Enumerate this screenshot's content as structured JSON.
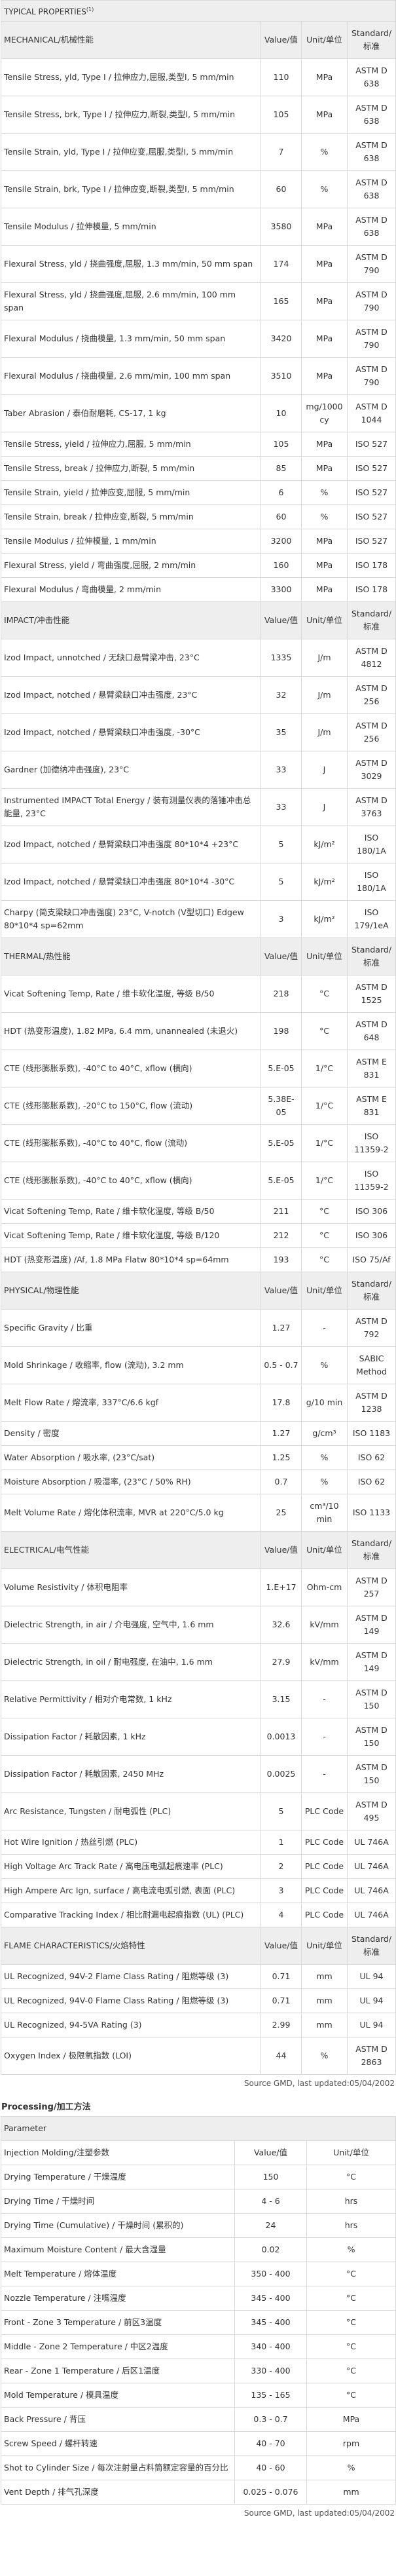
{
  "properties": {
    "title": "TYPICAL PROPERTIES",
    "title_note": "(1)",
    "sections": [
      {
        "header": [
          "MECHANICAL/机械性能",
          "Value/值",
          "Unit/单位",
          "Standard/标准"
        ],
        "rows": [
          [
            "Tensile Stress, yld, Type I / 拉伸应力,屈服,类型I, 5 mm/min",
            "110",
            "MPa",
            "ASTM D 638"
          ],
          [
            "Tensile Stress, brk, Type I / 拉伸应力,断裂,类型I, 5 mm/min",
            "105",
            "MPa",
            "ASTM D 638"
          ],
          [
            "Tensile Strain, yld, Type I / 拉伸应变,屈服,类型I, 5 mm/min",
            "7",
            "%",
            "ASTM D 638"
          ],
          [
            "Tensile Strain, brk, Type I / 拉伸应变,断裂,类型I, 5 mm/min",
            "60",
            "%",
            "ASTM D 638"
          ],
          [
            "Tensile Modulus / 拉伸模量, 5 mm/min",
            "3580",
            "MPa",
            "ASTM D 638"
          ],
          [
            "Flexural Stress, yld / 挠曲强度,屈服, 1.3 mm/min, 50 mm span",
            "174",
            "MPa",
            "ASTM D 790"
          ],
          [
            "Flexural Stress, yld / 挠曲强度,屈服, 2.6 mm/min, 100 mm span",
            "165",
            "MPa",
            "ASTM D 790"
          ],
          [
            "Flexural Modulus / 挠曲模量, 1.3 mm/min, 50 mm span",
            "3420",
            "MPa",
            "ASTM D 790"
          ],
          [
            "Flexural Modulus / 挠曲模量, 2.6 mm/min, 100 mm span",
            "3510",
            "MPa",
            "ASTM D 790"
          ],
          [
            "Taber Abrasion / 泰伯耐磨耗, CS-17, 1 kg",
            "10",
            "mg/1000cy",
            "ASTM D 1044"
          ],
          [
            "Tensile Stress, yield / 拉伸应力,屈服, 5 mm/min",
            "105",
            "MPa",
            "ISO 527"
          ],
          [
            "Tensile Stress, break / 拉伸应力,断裂, 5 mm/min",
            "85",
            "MPa",
            "ISO 527"
          ],
          [
            "Tensile Strain, yield / 拉伸应变,屈服, 5 mm/min",
            "6",
            "%",
            "ISO 527"
          ],
          [
            "Tensile Strain, break / 拉伸应变,断裂, 5 mm/min",
            "60",
            "%",
            "ISO 527"
          ],
          [
            "Tensile Modulus / 拉伸模量, 1 mm/min",
            "3200",
            "MPa",
            "ISO 527"
          ],
          [
            "Flexural Stress, yield / 弯曲强度,屈服, 2 mm/min",
            "160",
            "MPa",
            "ISO 178"
          ],
          [
            "Flexural Modulus / 弯曲模量, 2 mm/min",
            "3300",
            "MPa",
            "ISO 178"
          ]
        ]
      },
      {
        "header": [
          "IMPACT/冲击性能",
          "Value/值",
          "Unit/单位",
          "Standard/标准"
        ],
        "rows": [
          [
            "Izod Impact, unnotched / 无缺口悬臂梁冲击, 23°C",
            "1335",
            "J/m",
            "ASTM D 4812"
          ],
          [
            "Izod Impact, notched / 悬臂梁缺口冲击强度, 23°C",
            "32",
            "J/m",
            "ASTM D 256"
          ],
          [
            "Izod Impact, notched / 悬臂梁缺口冲击强度, -30°C",
            "35",
            "J/m",
            "ASTM D 256"
          ],
          [
            "Gardner (加德纳冲击强度), 23°C",
            "33",
            "J",
            "ASTM D 3029"
          ],
          [
            "Instrumented IMPACT Total Energy / 装有测量仪表的落锤冲击总能量, 23°C",
            "33",
            "J",
            "ASTM D 3763"
          ],
          [
            "Izod Impact, notched / 悬臂梁缺口冲击强度 80*10*4 +23°C",
            "5",
            "kJ/m²",
            "ISO 180/1A"
          ],
          [
            "Izod Impact, notched / 悬臂梁缺口冲击强度 80*10*4 -30°C",
            "5",
            "kJ/m²",
            "ISO 180/1A"
          ],
          [
            "Charpy (简支梁缺口冲击强度) 23°C, V-notch (V型切口) Edgew 80*10*4 sp=62mm",
            "3",
            "kJ/m²",
            "ISO 179/1eA"
          ]
        ]
      },
      {
        "header": [
          "THERMAL/热性能",
          "Value/值",
          "Unit/单位",
          "Standard/标准"
        ],
        "rows": [
          [
            "Vicat Softening Temp, Rate / 维卡软化温度, 等级 B/50",
            "218",
            "°C",
            "ASTM D 1525"
          ],
          [
            "HDT (热变形温度), 1.82 MPa, 6.4 mm, unannealed (未退火)",
            "198",
            "°C",
            "ASTM D 648"
          ],
          [
            "CTE (线形膨胀系数), -40°C to 40°C, xflow (横向)",
            "5.E-05",
            "1/°C",
            "ASTM E 831"
          ],
          [
            "CTE (线形膨胀系数), -20°C to 150°C, flow (流动)",
            "5.38E-05",
            "1/°C",
            "ASTM E 831"
          ],
          [
            "CTE (线形膨胀系数), -40°C to 40°C, flow (流动)",
            "5.E-05",
            "1/°C",
            "ISO 11359-2"
          ],
          [
            "CTE (线形膨胀系数), -40°C to 40°C, xflow (横向)",
            "5.E-05",
            "1/°C",
            "ISO 11359-2"
          ],
          [
            "Vicat Softening Temp, Rate / 维卡软化温度, 等级 B/50",
            "211",
            "°C",
            "ISO 306"
          ],
          [
            "Vicat Softening Temp, Rate / 维卡软化温度, 等级 B/120",
            "212",
            "°C",
            "ISO 306"
          ],
          [
            "HDT (热变形温度) /Af, 1.8 MPa Flatw 80*10*4 sp=64mm",
            "193",
            "°C",
            "ISO 75/Af"
          ]
        ]
      },
      {
        "header": [
          "PHYSICAL/物理性能",
          "Value/值",
          "Unit/单位",
          "Standard/标准"
        ],
        "rows": [
          [
            "Specific Gravity / 比重",
            "1.27",
            "-",
            "ASTM D 792"
          ],
          [
            "Mold Shrinkage / 收缩率, flow (流动), 3.2 mm",
            "0.5 - 0.7",
            "%",
            "SABIC Method"
          ],
          [
            "Melt Flow Rate / 熔流率, 337°C/6.6 kgf",
            "17.8",
            "g/10 min",
            "ASTM D 1238"
          ],
          [
            "Density / 密度",
            "1.27",
            "g/cm³",
            "ISO 1183"
          ],
          [
            "Water Absorption / 吸水率, (23°C/sat)",
            "1.25",
            "%",
            "ISO 62"
          ],
          [
            "Moisture Absorption / 吸湿率, (23°C / 50% RH)",
            "0.7",
            "%",
            "ISO 62"
          ],
          [
            "Melt Volume Rate / 熔化体积流率, MVR at 220°C/5.0 kg",
            "25",
            "cm³/10 min",
            "ISO 1133"
          ]
        ]
      },
      {
        "header": [
          "ELECTRICAL/电气性能",
          "Value/值",
          "Unit/单位",
          "Standard/标准"
        ],
        "rows": [
          [
            "Volume Resistivity / 体积电阻率",
            "1.E+17",
            "Ohm-cm",
            "ASTM D 257"
          ],
          [
            "Dielectric Strength, in air / 介电强度, 空气中, 1.6 mm",
            "32.6",
            "kV/mm",
            "ASTM D 149"
          ],
          [
            "Dielectric Strength, in oil / 耐电强度, 在油中, 1.6 mm",
            "27.9",
            "kV/mm",
            "ASTM D 149"
          ],
          [
            "Relative Permittivity / 相对介电常数, 1 kHz",
            "3.15",
            "-",
            "ASTM D 150"
          ],
          [
            "Dissipation Factor / 耗散因素, 1 kHz",
            "0.0013",
            "-",
            "ASTM D 150"
          ],
          [
            "Dissipation Factor / 耗散因素, 2450 MHz",
            "0.0025",
            "-",
            "ASTM D 150"
          ],
          [
            "Arc Resistance, Tungsten / 耐电弧性 (PLC)",
            "5",
            "PLC Code",
            "ASTM D 495"
          ],
          [
            "Hot Wire Ignition / 热丝引燃 (PLC)",
            "1",
            "PLC Code",
            "UL 746A"
          ],
          [
            "High Voltage Arc Track Rate / 高电压电弧起痕速率 (PLC)",
            "2",
            "PLC Code",
            "UL 746A"
          ],
          [
            "High Ampere Arc Ign, surface / 高电流电弧引燃, 表面 (PLC)",
            "3",
            "PLC Code",
            "UL 746A"
          ],
          [
            "Comparative Tracking Index / 相比耐漏电起痕指数 (UL) (PLC)",
            "4",
            "PLC Code",
            "UL 746A"
          ]
        ]
      },
      {
        "header": [
          "FLAME CHARACTERISTICS/火焰特性",
          "Value/值",
          "Unit/单位",
          "Standard/标准"
        ],
        "rows": [
          [
            "UL Recognized, 94V-2 Flame Class Rating / 阻燃等级 (3)",
            "0.71",
            "mm",
            "UL 94"
          ],
          [
            "UL Recognized, 94V-0 Flame Class Rating / 阻燃等级 (3)",
            "0.71",
            "mm",
            "UL 94"
          ],
          [
            "UL Recognized, 94-5VA Rating (3)",
            "2.99",
            "mm",
            "UL 94"
          ],
          [
            "Oxygen Index / 极限氧指数 (LOI)",
            "44",
            "%",
            "ASTM D 2863"
          ]
        ]
      }
    ],
    "source": "Source GMD, last updated:05/04/2002"
  },
  "processing": {
    "title": "Processing/加工方法",
    "parameter": "Parameter",
    "header": [
      "Injection Molding/注塑参数",
      "Value/值",
      "Unit/单位"
    ],
    "rows": [
      [
        "Drying Temperature / 干燥温度",
        "150",
        "°C"
      ],
      [
        "Drying Time / 干燥时间",
        "4 - 6",
        "hrs"
      ],
      [
        "Drying Time (Cumulative) / 干燥时间 (累积的)",
        "24",
        "hrs"
      ],
      [
        "Maximum Moisture Content / 最大含湿量",
        "0.02",
        "%"
      ],
      [
        "Melt Temperature / 熔体温度",
        "350 - 400",
        "°C"
      ],
      [
        "Nozzle Temperature / 注嘴温度",
        "345 - 400",
        "°C"
      ],
      [
        "Front - Zone 3 Temperature / 前区3温度",
        "345 - 400",
        "°C"
      ],
      [
        "Middle - Zone 2 Temperature / 中区2温度",
        "340 - 400",
        "°C"
      ],
      [
        "Rear - Zone 1 Temperature / 后区1温度",
        "330 - 400",
        "°C"
      ],
      [
        "Mold Temperature / 模具温度",
        "135 - 165",
        "°C"
      ],
      [
        "Back Pressure / 背压",
        "0.3 - 0.7",
        "MPa"
      ],
      [
        "Screw Speed / 螺杆转速",
        "40 - 70",
        "rpm"
      ],
      [
        "Shot to Cylinder Size / 每次注射量占料筒额定容量的百分比",
        "40 - 60",
        "%"
      ],
      [
        "Vent Depth / 排气孔深度",
        "0.025 - 0.076",
        "mm"
      ]
    ],
    "source": "Source GMD, last updated:05/04/2002"
  }
}
